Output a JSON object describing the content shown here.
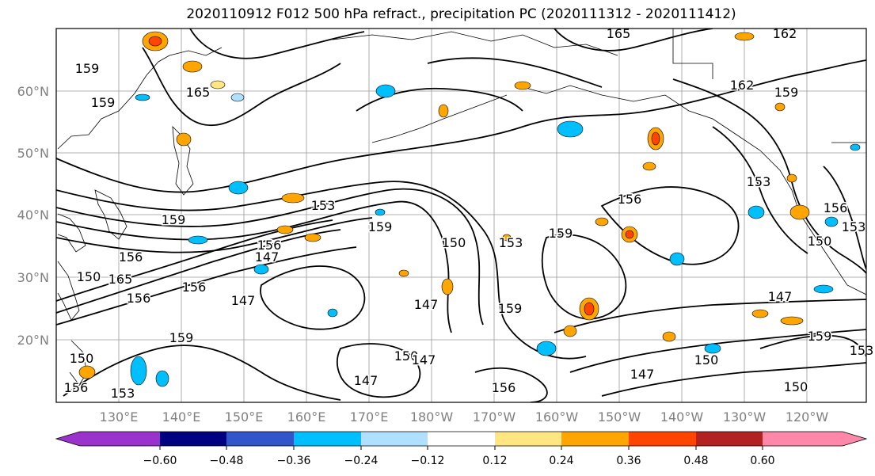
{
  "title": "2020110912 F012 500 hPa refract., precipitation PC (2020111312 - 2020111412)",
  "map": {
    "lat_labels": [
      "60°N",
      "50°N",
      "40°N",
      "30°N",
      "20°N"
    ],
    "lon_labels": [
      "130°E",
      "140°E",
      "150°E",
      "160°E",
      "170°E",
      "180°W",
      "170°W",
      "160°W",
      "150°W",
      "140°W",
      "130°W",
      "120°W"
    ],
    "contour_labels": [
      "165",
      "162",
      "159",
      "165",
      "159",
      "162",
      "159",
      "153",
      "156",
      "153",
      "159",
      "156",
      "159",
      "153",
      "150",
      "159",
      "153",
      "150",
      "156",
      "150",
      "156",
      "147",
      "147",
      "159",
      "147",
      "147",
      "150",
      "147",
      "156",
      "147",
      "150",
      "159",
      "153",
      "150",
      "156",
      "156",
      "153",
      "165",
      "156",
      "159",
      "150",
      "147"
    ]
  },
  "colorbar": {
    "colors": [
      "#9933cc",
      "#000080",
      "#3355cc",
      "#00bfff",
      "#b0e0ff",
      "#ffffff",
      "#ffe680",
      "#ffa500",
      "#ff4500",
      "#b22222",
      "#ff88aa"
    ],
    "tick_labels": [
      "−0.60",
      "−0.48",
      "−0.36",
      "−0.24",
      "−0.12",
      "0.12",
      "0.24",
      "0.36",
      "0.48",
      "0.60"
    ]
  }
}
